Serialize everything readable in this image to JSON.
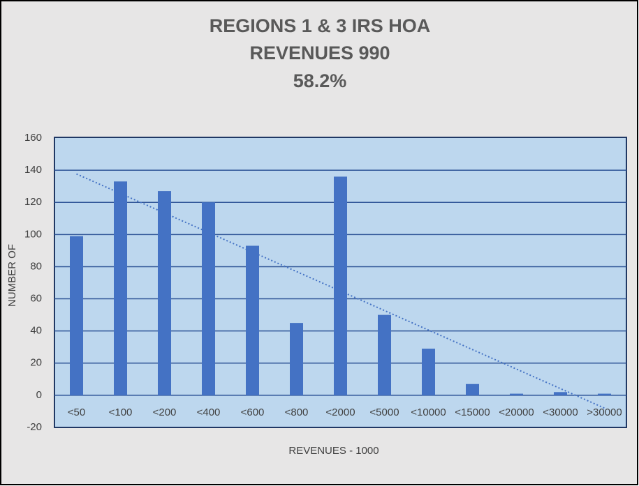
{
  "chart_data": {
    "type": "bar",
    "title": [
      "REGIONS 1 & 3  IRS HOA",
      "REVENUES 990",
      "58.2%"
    ],
    "x_label": "REVENUES - 1000",
    "y_label": "NUMBER OF",
    "categories": [
      "<50",
      "<100",
      "<200",
      "<400",
      "<600",
      "<800",
      "<2000",
      "<5000",
      "<10000",
      "<15000",
      "<20000",
      "<30000",
      ">30000"
    ],
    "values": [
      99,
      133,
      127,
      120,
      93,
      45,
      136,
      50,
      29,
      7,
      1,
      2,
      1
    ],
    "color": "#4472c4",
    "ylim": [
      -20,
      160
    ],
    "yticks": [
      -20,
      0,
      20,
      40,
      60,
      80,
      100,
      120,
      140,
      160
    ],
    "grid": true,
    "trendline": "linear",
    "trendline_color": "#4472c4"
  }
}
